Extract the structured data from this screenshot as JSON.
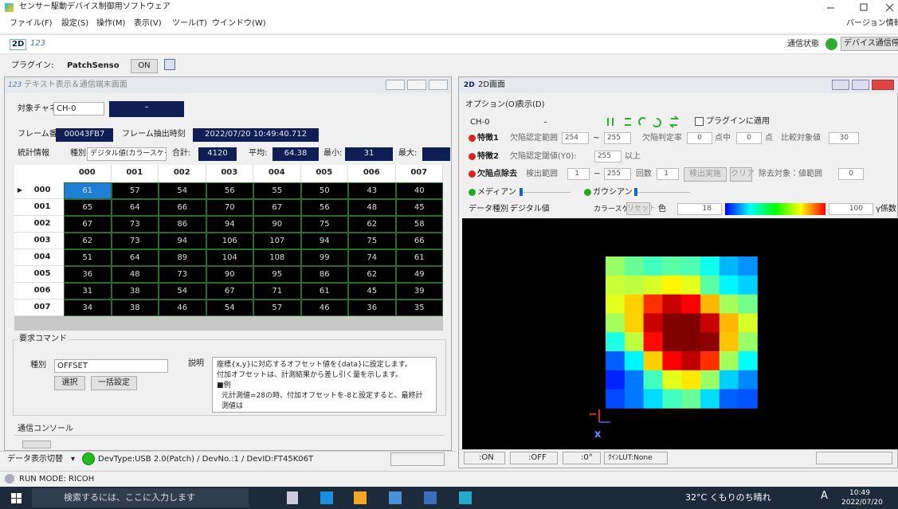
{
  "window": {
    "title": "センサー駆動デバイス制御用ソフトウェア",
    "menu": [
      "ファイル(F)",
      "設定(S)",
      "操作(M)",
      "表示(V)",
      "ツール(T)",
      "ウインドウ(W)"
    ],
    "version_info": "バージョン情報"
  },
  "toolbar": {
    "mode_2d": "2D",
    "mode_text": "123",
    "comm_status": "通信状態",
    "stop_button": "デバイス通信停止"
  },
  "plugin_bar": {
    "label": "プラグイン:",
    "name": "PatchSenso",
    "state": "ON"
  },
  "text_panel": {
    "title": "テキスト表示＆通信端末画面",
    "channel_label": "対象チャネル",
    "channel": "CH-0",
    "channel_value": "–",
    "frame_label": "フレーム番号",
    "frame": "00043FB7",
    "time_label": "フレーム抽出時刻",
    "time": "2022/07/20 10:49:40.712",
    "stats_label": "統計情報",
    "kind_label": "種別",
    "kind": "デジタル値(カラースケール)",
    "sum_label": "合計:",
    "sum": 4120,
    "mean_label": "平均:",
    "mean": 64.38,
    "min_label": "最小:",
    "min": 31,
    "max_label": "最大:"
  },
  "table": {
    "columns": [
      "000",
      "001",
      "002",
      "003",
      "004",
      "005",
      "006",
      "007"
    ],
    "row_labels": [
      "000",
      "001",
      "002",
      "003",
      "004",
      "005",
      "006",
      "007"
    ],
    "rows": [
      [
        61,
        57,
        54,
        56,
        55,
        50,
        43,
        40
      ],
      [
        65,
        64,
        66,
        70,
        67,
        56,
        48,
        45
      ],
      [
        67,
        73,
        86,
        94,
        90,
        75,
        62,
        58
      ],
      [
        62,
        73,
        94,
        106,
        107,
        94,
        75,
        66
      ],
      [
        51,
        64,
        89,
        104,
        108,
        99,
        74,
        61
      ],
      [
        36,
        48,
        73,
        90,
        95,
        86,
        62,
        49
      ],
      [
        31,
        38,
        54,
        67,
        71,
        61,
        45,
        39
      ],
      [
        34,
        38,
        46,
        54,
        57,
        46,
        36,
        35
      ]
    ]
  },
  "command": {
    "group": "要求コマンド",
    "kind_label": "種別",
    "kind": "OFFSET",
    "desc_label": "説明",
    "description": [
      "座標{x,y}に対応するオフセット値を{data}に設定します。",
      "付加オフセットは、計測結果から差し引く量を示します。",
      "■例",
      "元計測値=28の時、付加オフセットを-8と設定すると、最終計測値は"
    ],
    "select_button": "選択",
    "batch_button": "一括設定",
    "console": "通信コンソール"
  },
  "status_left": {
    "switch": "データ表示切替",
    "device": "DevType:USB 2.0(Patch) / DevNo.:1 / DevID:FT45K06T"
  },
  "panel_2d": {
    "icon": "2D",
    "title": "2D画面",
    "menu": [
      "オプション(O)",
      "表示(D)"
    ],
    "channel": "CH-0",
    "channel_value": "–",
    "plugin_apply": "プラグインに適用",
    "feature1": {
      "name": "特徴1",
      "range_label": "欠陥認定範囲",
      "range_from": 254,
      "tilde": "~",
      "range_to": 255,
      "rate_label": "欠陥判定率",
      "rate_a": 0,
      "of_label": "点中",
      "rate_b": 0,
      "point_label": "点",
      "compare_label": "比較対象値",
      "compare": 30
    },
    "feature2": {
      "name": "特徴2",
      "threshold_label": "欠陥認定閾値(Y0):",
      "threshold": 255,
      "above_label": "以上"
    },
    "removal": {
      "name": "欠陥点除去",
      "range_label": "検出範囲",
      "range_from": 1,
      "tilde": "~",
      "range_to": 255,
      "count_label": "回数",
      "count": 1,
      "run_button": "検出実施",
      "clear_button": "クリア",
      "target_label": "除去対象：値範囲",
      "target": 0
    },
    "filters": [
      "メディアン",
      "ガウシアン"
    ],
    "data_row": {
      "label": "データ種別：",
      "kind": "デジタル値",
      "scale": "カラースケール",
      "reset": "リセット",
      "color": "色",
      "color_min": 18,
      "color_max": 100,
      "gamma": "γ係数"
    },
    "axis_label": "x",
    "status": [
      ":ON",
      ":OFF",
      ":0°",
      "ｸｲﾝLUT:None"
    ]
  },
  "run_mode": "RUN MODE: RICOH",
  "taskbar": {
    "search": "検索するには、ここに入力します",
    "weather": "32°C くもりのち晴れ",
    "ime": "A",
    "time": "10:49",
    "date": "2022/07/20"
  }
}
